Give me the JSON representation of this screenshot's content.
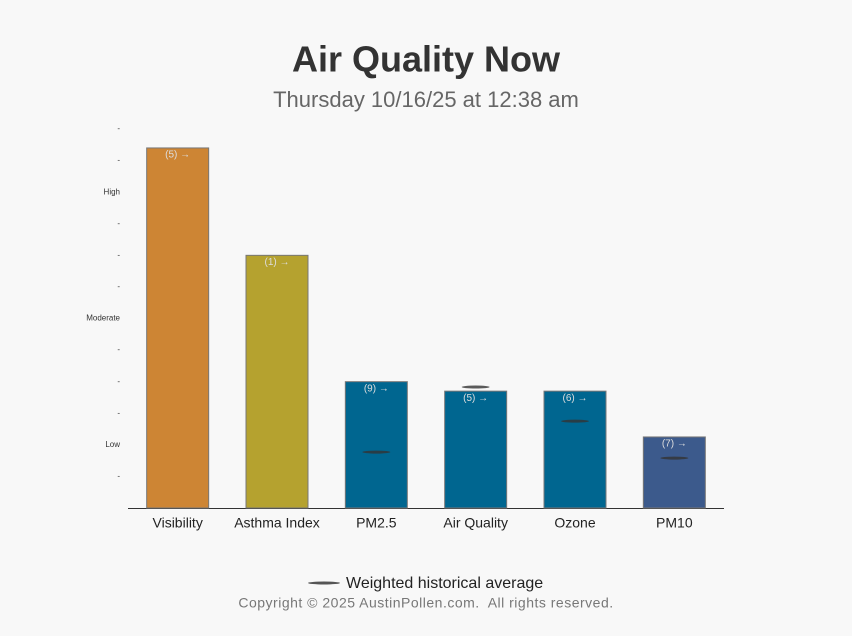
{
  "chart_data": {
    "type": "bar",
    "title": "Air Quality Now",
    "subtitle": "Thursday 10/16/25 at 12:38 am",
    "categories": [
      "Visibility",
      "Asthma Index",
      "PM2.5",
      "Air Quality",
      "Ozone",
      "PM10"
    ],
    "values": [
      11.4,
      8.0,
      4.0,
      3.7,
      3.7,
      2.25
    ],
    "colors": [
      "#cd8534",
      "#b5a22f",
      "#006690",
      "#006690",
      "#006690",
      "#3c5a8c"
    ],
    "annotations": [
      "(5) →",
      "(1) →",
      "(9) →",
      "(5) →",
      "(6) →",
      "(7) →"
    ],
    "historical_average": {
      "name": "Weighted historical average",
      "values": [
        null,
        null,
        1.77,
        3.83,
        2.75,
        1.58
      ]
    },
    "ylim": [
      0,
      12
    ],
    "yticks": [
      {
        "value": 1,
        "label": "-"
      },
      {
        "value": 2,
        "label": "Low"
      },
      {
        "value": 3,
        "label": "-"
      },
      {
        "value": 4,
        "label": "-"
      },
      {
        "value": 5,
        "label": "-"
      },
      {
        "value": 6,
        "label": "Moderate"
      },
      {
        "value": 7,
        "label": "-"
      },
      {
        "value": 8,
        "label": "-"
      },
      {
        "value": 9,
        "label": "-"
      },
      {
        "value": 10,
        "label": "High"
      },
      {
        "value": 11,
        "label": "-"
      },
      {
        "value": 12,
        "label": "-"
      }
    ],
    "footer": "Copyright © 2025 AustinPollen.com.  All rights reserved."
  }
}
